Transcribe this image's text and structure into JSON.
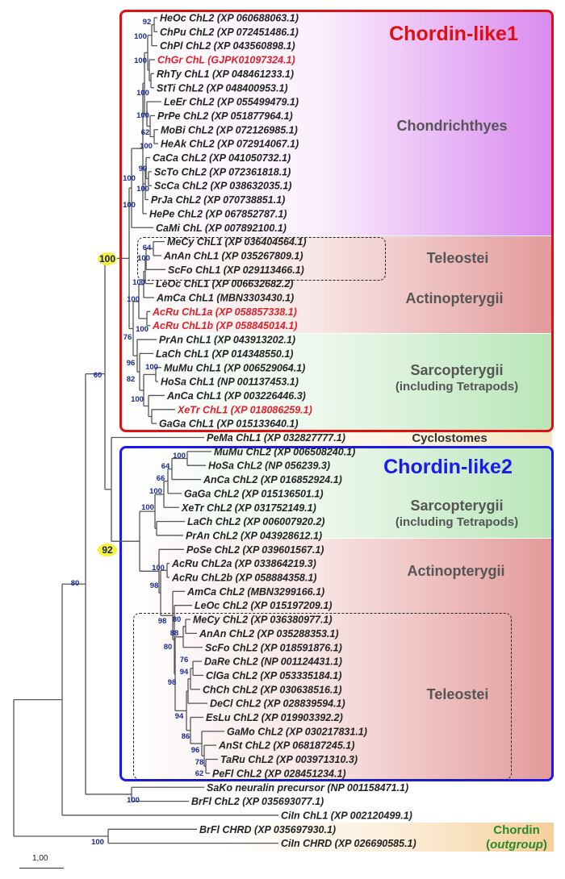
{
  "colors": {
    "chordin_like1_box": "#dd1111",
    "chordin_like2_box": "#1a1aee",
    "chondrichthyes_bg": "#d98af0",
    "actinopterygii_bg": "#e8a0a0",
    "sarcopterygii_bg": "#b8e6b8",
    "cyclostomes_bg": "#f6efd6",
    "outgroup_bg": "#f5cf99",
    "highlight_label": "#e0202a",
    "bootstrap": "#1a2a9a",
    "strong_node_marker": "#f5f233"
  },
  "groups": {
    "chordin_like1": "Chordin-like1",
    "chondrichthyes": "Chondrichthyes",
    "teleostei_1": "Teleostei",
    "actinopterygii_1": "Actinopterygii",
    "sarcopterygii_1": "Sarcopterygii",
    "sarcopterygii_1_note": "(including Tetrapods)",
    "cyclostomes": "Cyclostomes",
    "chordin_like2": "Chordin-like2",
    "sarcopterygii_2": "Sarcopterygii",
    "sarcopterygii_2_note": "(including Tetrapods)",
    "actinopterygii_2": "Actinopterygii",
    "teleostei_2": "Teleostei",
    "outgroup_title": "Chordin",
    "outgroup_note_open": "(",
    "outgroup_note": "outgroup",
    "outgroup_note_close": ")"
  },
  "scale_bar": {
    "label": "1,00"
  },
  "tips": [
    {
      "label": "HeOc ChL2 (XP 060688063.1)"
    },
    {
      "label": "ChPu ChL2 (XP 072451486.1)"
    },
    {
      "label": "ChPl ChL2 (XP 043560898.1)"
    },
    {
      "label": "ChGr ChL (GJPK01097324.1)",
      "highlight": true
    },
    {
      "label": "RhTy ChL1 (XP 048461233.1)"
    },
    {
      "label": "StTi ChL2 (XP 048400953.1)"
    },
    {
      "label": "LeEr ChL2 (XP 055499479.1)"
    },
    {
      "label": "PrPe ChL2 (XP 051877964.1)"
    },
    {
      "label": "MoBi ChL2 (XP 072126985.1)"
    },
    {
      "label": "HeAk ChL2 (XP 072914067.1)"
    },
    {
      "label": "CaCa ChL2 (XP 041050732.1)"
    },
    {
      "label": "ScTo ChL2 (XP 072361818.1)"
    },
    {
      "label": "ScCa ChL2 (XP 038632035.1)"
    },
    {
      "label": "PrJa ChL2 (XP 070738851.1)"
    },
    {
      "label": "HePe ChL2 (XP 067852787.1)"
    },
    {
      "label": "CaMi ChL (XP 007892100.1)"
    },
    {
      "label": "MeCy ChL1 (XP 036404564.1)"
    },
    {
      "label": "AnAn ChL1 (XP 035267809.1)"
    },
    {
      "label": "ScFo ChL1 (XP 029113466.1)"
    },
    {
      "label": "LeOc ChL1 (XP 006632682.2)"
    },
    {
      "label": "AmCa ChL1 (MBN3303430.1)"
    },
    {
      "label": "AcRu ChL1a (XP 058857338.1)",
      "highlight": true
    },
    {
      "label": "AcRu ChL1b (XP 058845014.1)",
      "highlight": true
    },
    {
      "label": "PrAn ChL1 (XP 043913202.1)"
    },
    {
      "label": "LaCh ChL1 (XP 014348550.1)"
    },
    {
      "label": "MuMu ChL1 (XP 006529064.1)"
    },
    {
      "label": "HoSa ChL1 (NP 001137453.1)"
    },
    {
      "label": "AnCa ChL1 (XP 003226446.3)"
    },
    {
      "label": "XeTr ChL1 (XP 018086259.1)",
      "highlight": true
    },
    {
      "label": "GaGa ChL1 (XP 015133640.1)"
    },
    {
      "label": "PeMa ChL1 (XP 032827777.1)"
    },
    {
      "label": "MuMu ChL2 (XP 006508240.1)"
    },
    {
      "label": "HoSa ChL2 (NP 056239.3)"
    },
    {
      "label": "AnCa ChL2 (XP 016852924.1)"
    },
    {
      "label": "GaGa ChL2 (XP 015136501.1)"
    },
    {
      "label": "XeTr ChL2 (XP 031752149.1)"
    },
    {
      "label": "LaCh ChL2 (XP 006007920.2)"
    },
    {
      "label": "PrAn ChL2 (XP 043928612.1)"
    },
    {
      "label": "PoSe ChL2 (XP 039601567.1)"
    },
    {
      "label": "AcRu ChL2a (XP 033864219.3)"
    },
    {
      "label": "AcRu ChL2b (XP 058884358.1)"
    },
    {
      "label": "AmCa ChL2 (MBN3299166.1)"
    },
    {
      "label": "LeOc ChL2 (XP 015197209.1)"
    },
    {
      "label": "MeCy ChL2 (XP 036380977.1)"
    },
    {
      "label": "AnAn ChL2 (XP 035288353.1)"
    },
    {
      "label": "ScFo ChL2 (XP 018591876.1)"
    },
    {
      "label": "DaRe ChL2 (NP 001124431.1)"
    },
    {
      "label": "ClGa ChL2 (XP 053335184.1)"
    },
    {
      "label": "ChCh ChL2 (XP 030638516.1)"
    },
    {
      "label": "DeCl ChL2 (XP 028839594.1)"
    },
    {
      "label": "EsLu ChL2 (XP 019903392.2)"
    },
    {
      "label": "GaMo ChL2 (XP 030217831.1)"
    },
    {
      "label": "AnSt ChL2 (XP 068187245.1)"
    },
    {
      "label": "TaRu ChL2 (XP 003971310.3)"
    },
    {
      "label": "PeFl ChL2 (XP 028451234.1)"
    },
    {
      "label": "SaKo neuralin precursor (NP 001158471.1)"
    },
    {
      "label": "BrFl ChL2 (XP 035693077.1)"
    },
    {
      "label": "CiIn ChL1 (XP 002120499.1)"
    },
    {
      "label": "BrFl CHRD (XP 035697930.1)"
    },
    {
      "label": "CiIn CHRD (XP 026690585.1)"
    }
  ],
  "bootstrap": [
    "92",
    "100",
    "100",
    "100",
    "100",
    "62",
    "100",
    "90",
    "100",
    "100",
    "100",
    "64",
    "100",
    "100",
    "100",
    "100",
    "76",
    "96",
    "100",
    "82",
    "100",
    "100",
    "60",
    "100",
    "64",
    "66",
    "100",
    "100",
    "92",
    "100",
    "98",
    "80",
    "98",
    "88",
    "80",
    "76",
    "94",
    "98",
    "94",
    "86",
    "96",
    "78",
    "62",
    "80",
    "100",
    "100"
  ],
  "highlighted_bootstrap": [
    21,
    28
  ]
}
